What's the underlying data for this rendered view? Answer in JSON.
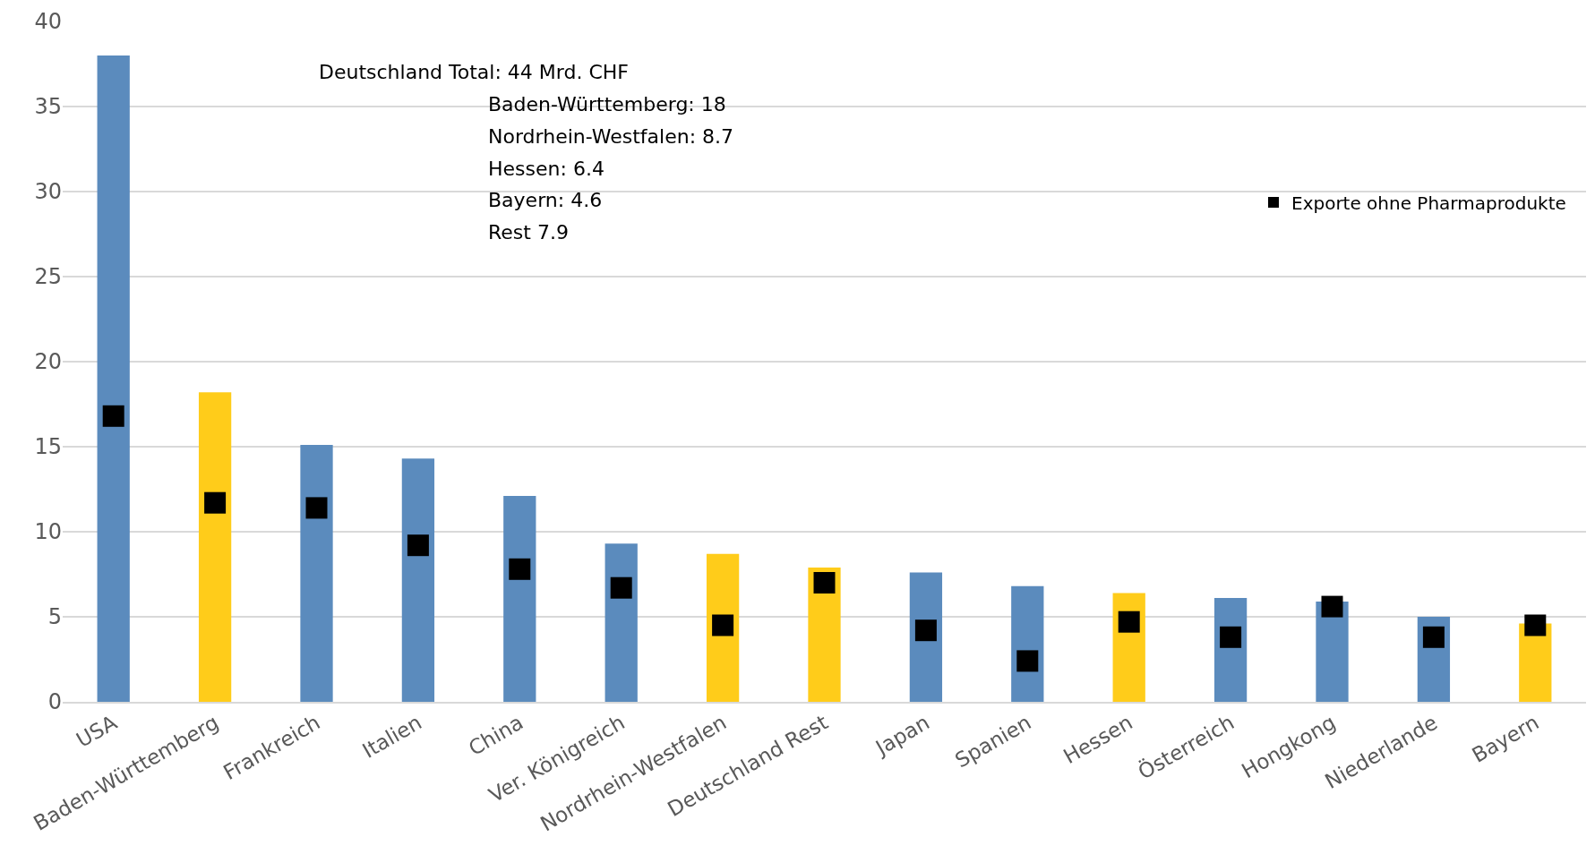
{
  "chart_data": {
    "type": "bar",
    "categories": [
      "USA",
      "Baden-Württemberg",
      "Frankreich",
      "Italien",
      "China",
      "Ver. Königreich",
      "Nordrhein-Westfalen",
      "Deutschland Rest",
      "Japan",
      "Spanien",
      "Hessen",
      "Österreich",
      "Hongkong",
      "Niederlande",
      "Bayern"
    ],
    "series": [
      {
        "values": [
          38,
          18.2,
          15.1,
          14.3,
          12.1,
          9.3,
          8.7,
          7.9,
          7.6,
          6.8,
          6.4,
          6.1,
          5.9,
          5.0,
          4.6
        ],
        "colors": [
          "#5b8bbd",
          "#ffcc1a",
          "#5b8bbd",
          "#5b8bbd",
          "#5b8bbd",
          "#5b8bbd",
          "#ffcc1a",
          "#ffcc1a",
          "#5b8bbd",
          "#5b8bbd",
          "#ffcc1a",
          "#5b8bbd",
          "#5b8bbd",
          "#5b8bbd",
          "#ffcc1a"
        ]
      },
      {
        "type": "scatter",
        "name": "Exporte ohne Pharmaprodukte",
        "color": "#000000",
        "marker": "square",
        "values": [
          16.8,
          11.7,
          11.4,
          9.2,
          7.8,
          6.7,
          4.5,
          7.0,
          4.2,
          2.4,
          4.7,
          3.8,
          5.6,
          3.8,
          4.5
        ]
      }
    ],
    "ylim": [
      0,
      40
    ],
    "yticks": [
      0,
      5,
      10,
      15,
      20,
      25,
      30,
      35,
      40
    ],
    "grid": "y",
    "legend": "top right",
    "annotations": [
      "Deutschland Total: 44 Mrd. CHF",
      "Baden-Württemberg: 18",
      "Nordrhein-Westfalen: 8.7",
      "Hessen: 6.4",
      "Bayern: 4.6",
      "Rest 7.9"
    ]
  }
}
